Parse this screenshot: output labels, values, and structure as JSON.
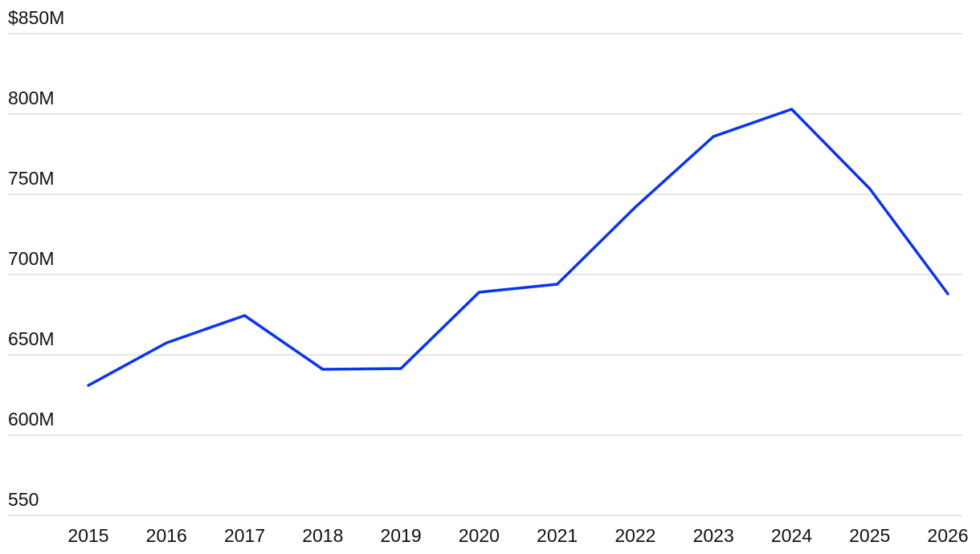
{
  "chart_data": {
    "type": "line",
    "categories": [
      "2015",
      "2016",
      "2017",
      "2018",
      "2019",
      "2020",
      "2021",
      "2022",
      "2023",
      "2024",
      "2025",
      "2026"
    ],
    "series": [
      {
        "color": "#0a34f0",
        "values": [
          631,
          657.5,
          674.5,
          641,
          641.5,
          689,
          694,
          742,
          786,
          803,
          753.5,
          688
        ]
      }
    ],
    "ylim": [
      550,
      850
    ],
    "yticks": [
      550,
      {
        "value": 600,
        "label": "600M"
      },
      {
        "value": 650,
        "label": "650M"
      },
      {
        "value": 700,
        "label": "700M"
      },
      {
        "value": 750,
        "label": "750M"
      },
      {
        "value": 800,
        "label": "800M"
      },
      {
        "value": 850,
        "label": "$850M"
      }
    ],
    "grid": true
  }
}
